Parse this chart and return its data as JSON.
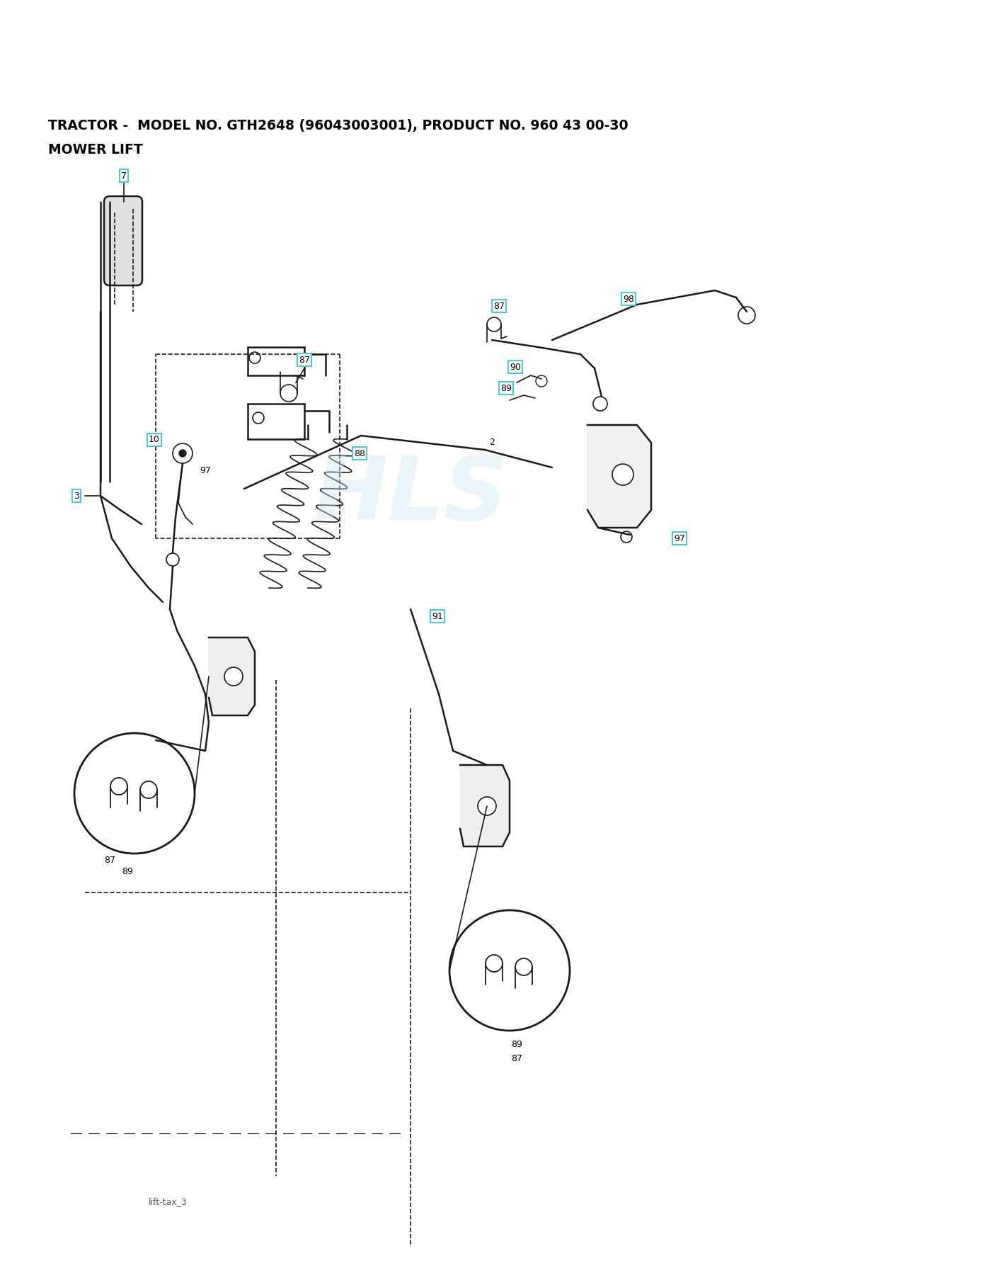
{
  "title_line1": "TRACTOR -  MODEL NO. GTH2648 (96043003001), PRODUCT NO. 960 43 00-30",
  "title_line2": "MOWER LIFT",
  "background_color": "#ffffff",
  "line_color": "#1a1a1a",
  "label_color": "#000000",
  "callout_box_color": "#40c8d0",
  "watermark_text": "HLS",
  "watermark_color": "#c8e8f0",
  "diagram_caption": "lift-tax_3",
  "figsize": [
    14.1,
    18.0
  ],
  "dpi": 100
}
